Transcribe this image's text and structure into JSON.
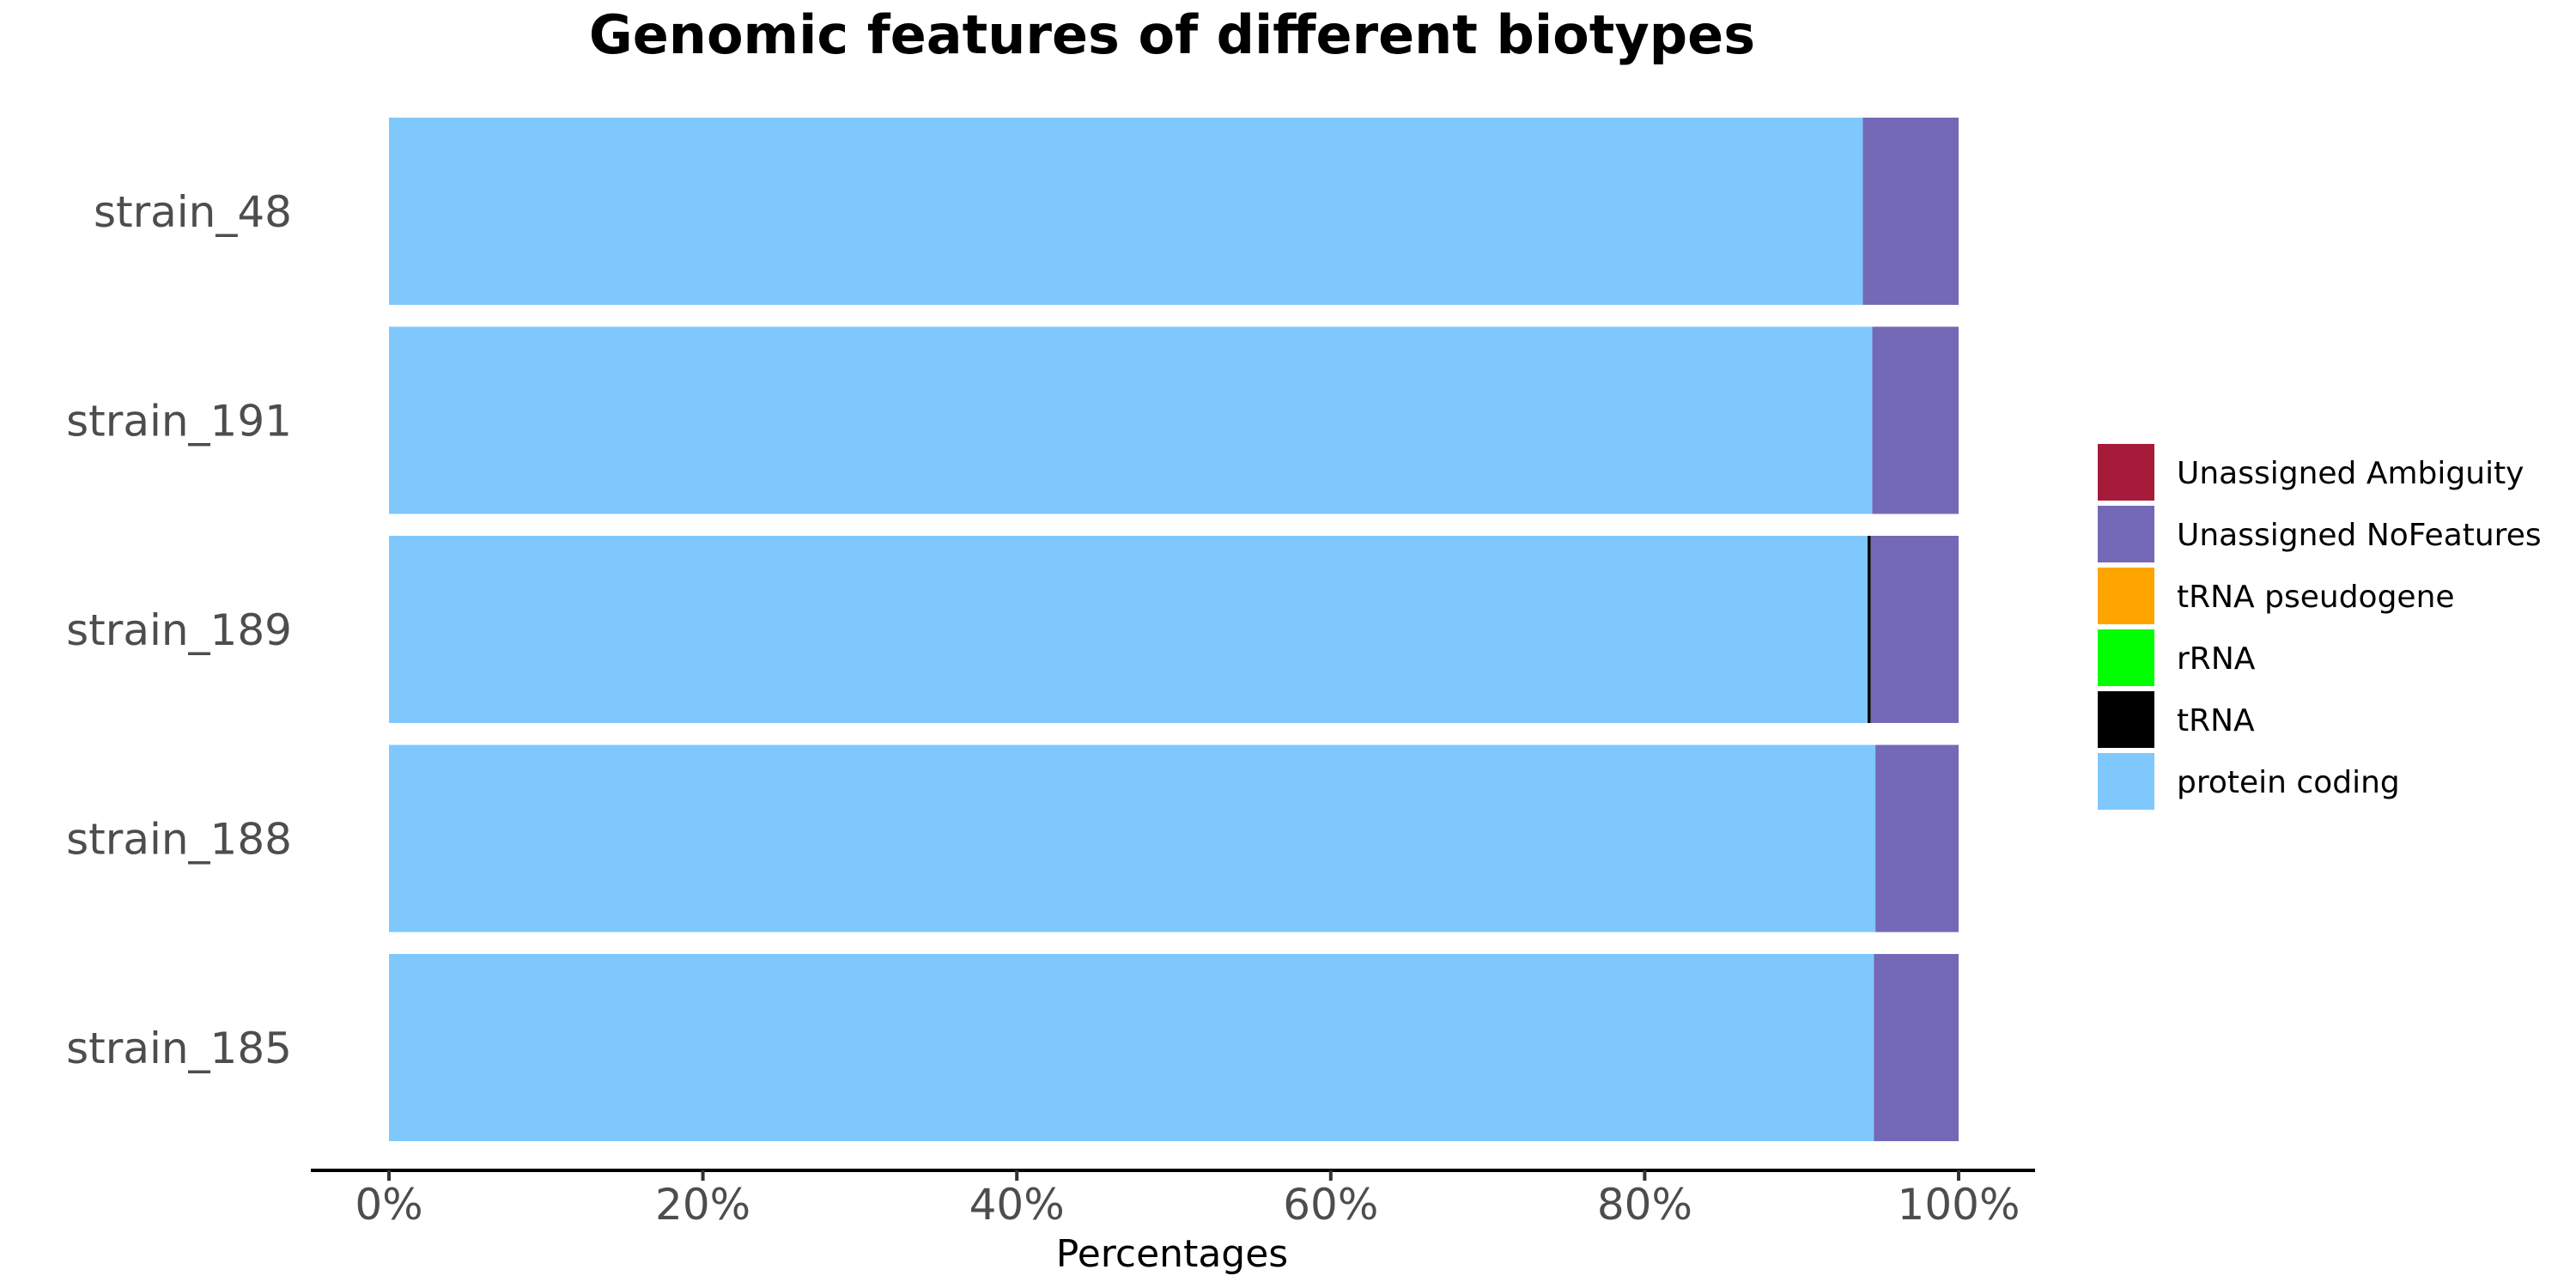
{
  "chart_data": {
    "type": "bar",
    "orientation": "horizontal",
    "stacked": true,
    "title": "Genomic features of different biotypes",
    "xlabel": "Percentages",
    "ylabel": "",
    "xlim": [
      0,
      100
    ],
    "x_ticks": [
      "0%",
      "20%",
      "40%",
      "60%",
      "80%",
      "100%"
    ],
    "categories": [
      "strain_48",
      "strain_191",
      "strain_189",
      "strain_188",
      "strain_185"
    ],
    "legend_position": "right",
    "series": [
      {
        "name": "protein coding",
        "color": "#7EC8FE",
        "values": [
          93.9,
          94.5,
          94.2,
          94.7,
          94.6
        ]
      },
      {
        "name": "tRNA",
        "color": "#000000",
        "values": [
          0.0,
          0.0,
          0.2,
          0.0,
          0.0
        ]
      },
      {
        "name": "rRNA",
        "color": "#00FF00",
        "values": [
          0.0,
          0.0,
          0.0,
          0.0,
          0.0
        ]
      },
      {
        "name": "tRNA pseudogene",
        "color": "#FFA500",
        "values": [
          0.0,
          0.0,
          0.0,
          0.0,
          0.0
        ]
      },
      {
        "name": "Unassigned NoFeatures",
        "color": "#7469B6",
        "values": [
          6.1,
          5.5,
          5.6,
          5.3,
          5.4
        ]
      },
      {
        "name": "Unassigned Ambiguity",
        "color": "#A71B3A",
        "values": [
          0.0,
          0.0,
          0.0,
          0.0,
          0.0
        ]
      }
    ],
    "legend_order": [
      "Unassigned Ambiguity",
      "Unassigned NoFeatures",
      "tRNA pseudogene",
      "rRNA",
      "tRNA",
      "protein coding"
    ]
  }
}
